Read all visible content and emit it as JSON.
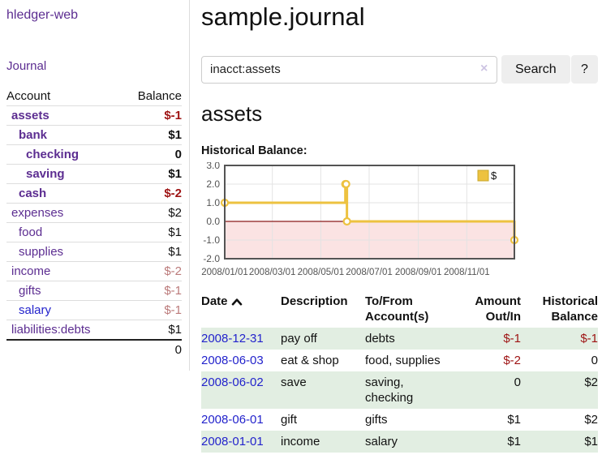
{
  "theme": {
    "purple": "#5c2d91",
    "blue-link": "#2323cc",
    "neg-strong": "#9e1313",
    "neg-soft": "#bb7a7a",
    "row-green": "#e2eee2",
    "border-gray": "#dddddd",
    "btn-gray": "#eeeeee",
    "axis-text": "#545454"
  },
  "sidebar": {
    "brand": "hledger-web",
    "journal_label": "Journal",
    "accounts": {
      "headers": {
        "account": "Account",
        "balance": "Balance"
      },
      "rows": [
        {
          "name": "assets",
          "level": 1,
          "bold": true,
          "balance": "$-1",
          "balance_class": "neg-strong"
        },
        {
          "name": "bank",
          "level": 2,
          "bold": true,
          "balance": "$1"
        },
        {
          "name": "checking",
          "level": 3,
          "bold": true,
          "balance": "0"
        },
        {
          "name": "saving",
          "level": 3,
          "bold": true,
          "balance": "$1"
        },
        {
          "name": "cash",
          "level": 2,
          "bold": true,
          "balance": "$-2",
          "balance_class": "neg-strong"
        },
        {
          "name": "expenses",
          "level": 1,
          "bold": false,
          "balance": "$2"
        },
        {
          "name": "food",
          "level": 2,
          "bold": false,
          "balance": "$1"
        },
        {
          "name": "supplies",
          "level": 2,
          "bold": false,
          "balance": "$1"
        },
        {
          "name": "income",
          "level": 1,
          "bold": false,
          "balance": "$-2",
          "balance_class": "neg-soft"
        },
        {
          "name": "gifts",
          "level": 2,
          "bold": false,
          "balance": "$-1",
          "balance_class": "neg-soft"
        },
        {
          "name": "salary",
          "level": 2,
          "bold": false,
          "balance": "$-1",
          "balance_class": "neg-soft",
          "variant": "blue"
        },
        {
          "name": "liabilities:debts",
          "level": 1,
          "bold": false,
          "balance": "$1"
        }
      ],
      "total": "0"
    }
  },
  "main": {
    "title": "sample.journal",
    "search": {
      "value": "inacct:assets",
      "clear_icon": "×",
      "button_label": "Search",
      "help_label": "?"
    },
    "account_heading": "assets",
    "chart_label": "Historical Balance:",
    "register": {
      "headers": {
        "date": "Date",
        "description": "Description",
        "accounts": "To/From Account(s)",
        "amount": "Amount Out/In",
        "balance": "Historical Balance"
      },
      "rows": [
        {
          "date": "2008-12-31",
          "description": "pay off",
          "accounts": "debts",
          "amount": "$-1",
          "balance": "$-1"
        },
        {
          "date": "2008-06-03",
          "description": "eat & shop",
          "accounts": "food, supplies",
          "amount": "$-2",
          "balance": "0"
        },
        {
          "date": "2008-06-02",
          "description": "save",
          "accounts": "saving, checking",
          "amount": "0",
          "balance": "$2"
        },
        {
          "date": "2008-06-01",
          "description": "gift",
          "accounts": "gifts",
          "amount": "$1",
          "balance": "$2"
        },
        {
          "date": "2008-01-01",
          "description": "income",
          "accounts": "salary",
          "amount": "$1",
          "balance": "$1"
        }
      ]
    }
  },
  "chart_data": {
    "type": "line",
    "step": true,
    "title": "Historical Balance:",
    "series": [
      {
        "name": "$",
        "color": "#edc240",
        "points": [
          [
            "2008-01-01",
            1
          ],
          [
            "2008-06-01",
            2
          ],
          [
            "2008-06-02",
            2
          ],
          [
            "2008-06-03",
            0
          ],
          [
            "2008-12-31",
            -1
          ]
        ]
      }
    ],
    "xlim": [
      "2008-01-01",
      "2008-12-31"
    ],
    "ylim": [
      -2,
      3
    ],
    "yticks": [
      3,
      2,
      1,
      0,
      -1,
      -2
    ],
    "ytick_labels": [
      "3.0",
      "2.0",
      "1.0",
      "0.0",
      "-1.0",
      "-2.0"
    ],
    "xticks": [
      "2008-01-01",
      "2008-03-01",
      "2008-05-01",
      "2008-07-01",
      "2008-09-01",
      "2008-11-01"
    ],
    "xtick_labels": [
      "2008/01/01",
      "2008/03/01",
      "2008/05/01",
      "2008/07/01",
      "2008/09/01",
      "2008/11/01"
    ],
    "grid": true,
    "negative_region_fill": "#fbe3e3",
    "zero_line_color": "#8b1a1a",
    "plot_border_color": "#545454",
    "gridline_color": "#e3e3e3",
    "legend": {
      "label": "$",
      "position": "top-right",
      "swatch_border": "#c9a82c"
    }
  }
}
